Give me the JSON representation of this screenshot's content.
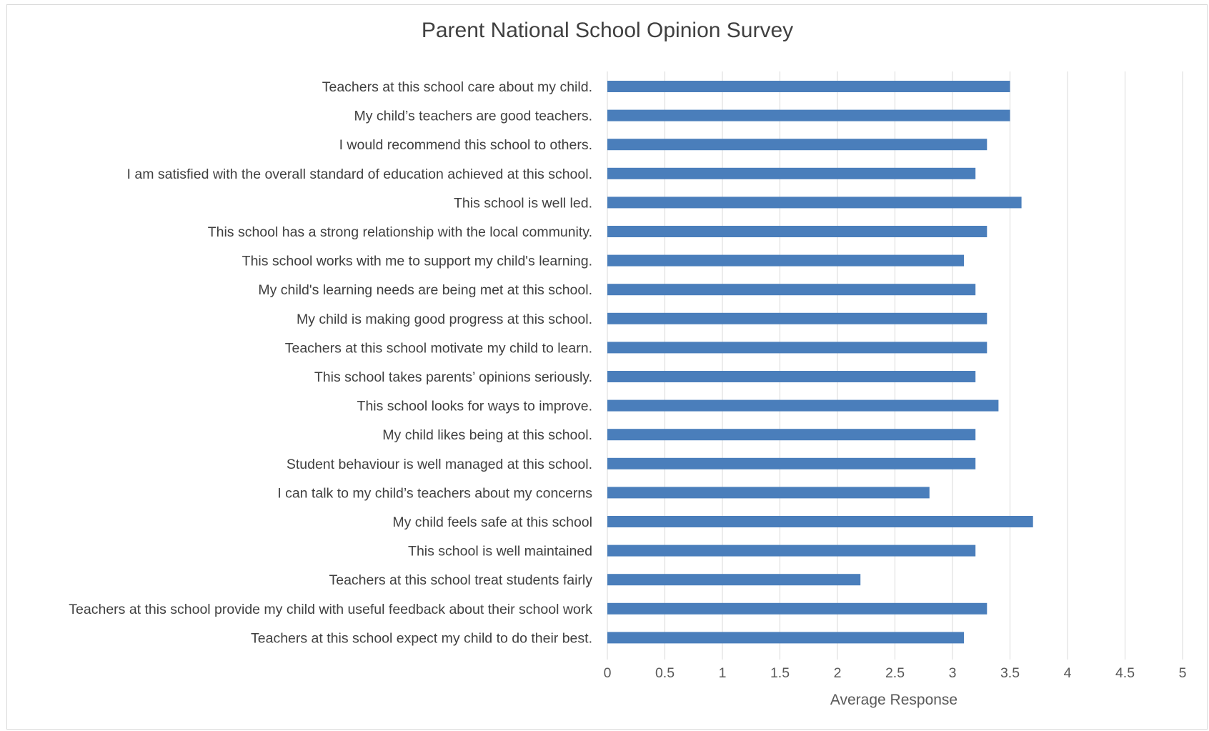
{
  "chart_data": {
    "type": "bar",
    "orientation": "horizontal",
    "title": "Parent National School Opinion Survey",
    "xlabel": "Average Response",
    "ylabel": "",
    "xlim": [
      0,
      5
    ],
    "x_ticks": [
      "0",
      "0.5",
      "1",
      "1.5",
      "2",
      "2.5",
      "3",
      "3.5",
      "4",
      "4.5",
      "5"
    ],
    "grid": "vertical",
    "legend": "none",
    "bar_color": "#4a7ebb",
    "categories": [
      "Teachers at this school care about my child.",
      "My child’s teachers are good teachers.",
      "I would recommend this school to others.",
      "I am satisfied with the overall standard of education achieved at this school.",
      "This school is well led.",
      "This school has a strong relationship with the local community.",
      "This school works with me to support my child's learning.",
      "My child's learning needs are being met at this school.",
      "My child is making good progress at this school.",
      "Teachers at this school motivate my child to learn.",
      "This school takes parents’ opinions seriously.",
      "This school looks for ways to improve.",
      "My child likes being at this school.",
      "Student behaviour is well managed at this school.",
      "I can talk to my child’s teachers about my concerns",
      "My child feels safe at this school",
      "This school is well maintained",
      "Teachers at this school treat students fairly",
      "Teachers at this school provide my child with useful feedback about their school work",
      "Teachers at this school expect my child to do their best."
    ],
    "values": [
      3.5,
      3.5,
      3.3,
      3.2,
      3.6,
      3.3,
      3.1,
      3.2,
      3.3,
      3.3,
      3.2,
      3.4,
      3.2,
      3.2,
      2.8,
      3.7,
      3.2,
      2.2,
      3.3,
      3.1
    ]
  }
}
